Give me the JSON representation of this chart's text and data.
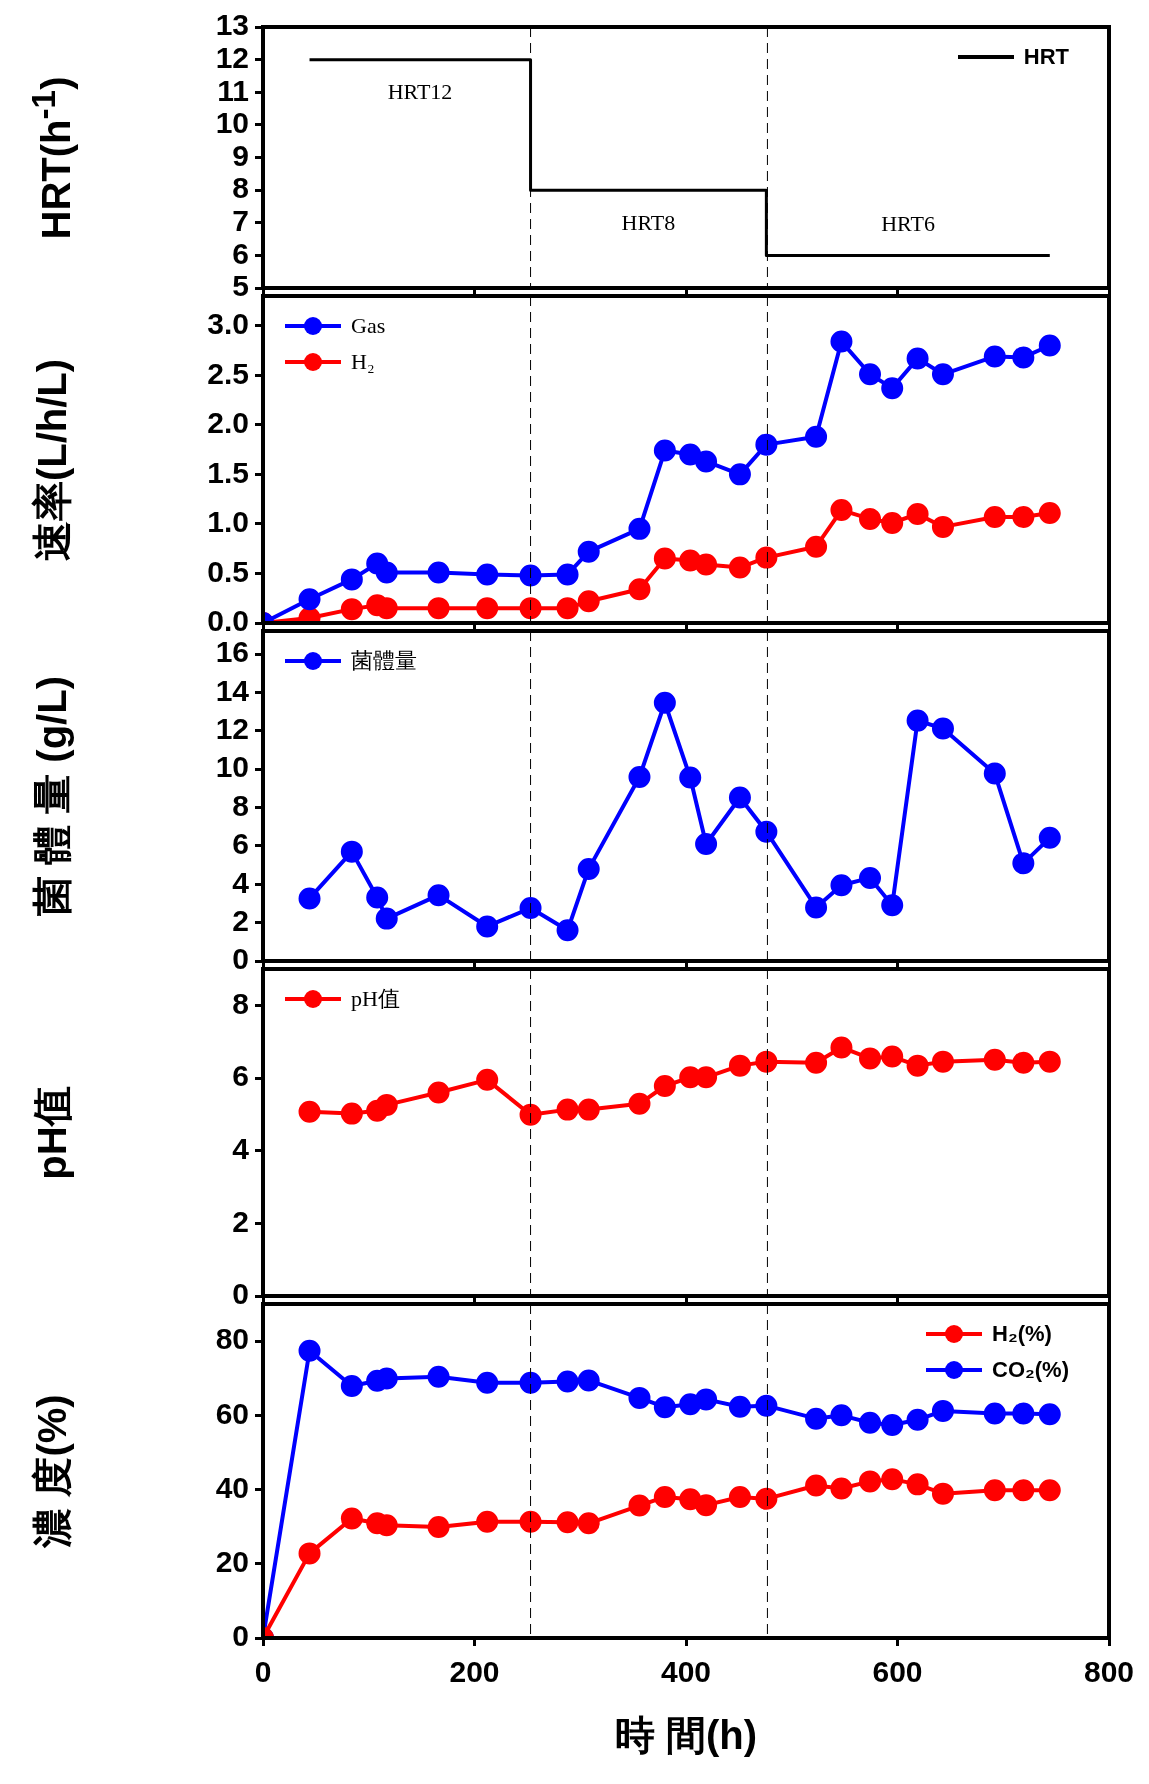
{
  "chart_data": [
    {
      "type": "step",
      "ylabel": "HRT(h$^{-1}$)",
      "x": [
        44,
        253,
        476,
        744
      ],
      "series": [
        {
          "name": "HRT",
          "color": "#000000",
          "values": [
            12,
            8,
            6,
            6
          ]
        }
      ],
      "xlim": [
        0,
        800
      ],
      "xticks": [
        0,
        200,
        400,
        600,
        800
      ],
      "ylim": [
        5,
        13
      ],
      "yticks": [
        5,
        6,
        7,
        8,
        9,
        10,
        11,
        12,
        13
      ],
      "tick_labels": "y",
      "legend": "top right",
      "marker": "none",
      "ref_lines": [
        {
          "axis": "x",
          "value": 253,
          "color": "#000000",
          "line_style": "dashed"
        },
        {
          "axis": "x",
          "value": 477,
          "color": "#000000",
          "line_style": "dashed"
        }
      ],
      "annotations": [
        "HRT12",
        "HRT8",
        "HRT6"
      ]
    },
    {
      "type": "line",
      "ylabel": "速率(L/h/L)",
      "x": [
        0,
        44,
        84,
        108,
        117,
        166,
        212,
        253,
        288,
        308,
        356,
        380,
        404,
        419,
        451,
        476,
        523,
        547,
        574,
        595,
        619,
        643,
        692,
        719,
        744
      ],
      "series": [
        {
          "name": "Gas",
          "color": "#0000ff",
          "values": [
            0,
            0.24,
            0.44,
            0.6,
            0.51,
            0.51,
            0.49,
            0.48,
            0.49,
            0.72,
            0.95,
            1.74,
            1.7,
            1.63,
            1.5,
            1.8,
            1.88,
            2.84,
            2.51,
            2.37,
            2.67,
            2.51,
            2.69,
            2.68,
            2.8
          ]
        },
        {
          "name": "H₂",
          "color": "#ff0000",
          "values": [
            0,
            0.05,
            0.14,
            0.18,
            0.15,
            0.15,
            0.15,
            0.15,
            0.15,
            0.22,
            0.34,
            0.65,
            0.63,
            0.59,
            0.56,
            0.66,
            0.77,
            1.14,
            1.05,
            1.01,
            1.1,
            0.97,
            1.07,
            1.07,
            1.11
          ]
        }
      ],
      "xlim": [
        0,
        800
      ],
      "xticks": [
        0,
        200,
        400,
        600,
        800
      ],
      "ylim": [
        0,
        3.3
      ],
      "yticks": [
        {
          "value": 0,
          "label": "0.0"
        },
        {
          "value": 0.5,
          "label": "0.5"
        },
        {
          "value": 1,
          "label": "1.0"
        },
        {
          "value": 1.5,
          "label": "1.5"
        },
        {
          "value": 2,
          "label": "2.0"
        },
        {
          "value": 2.5,
          "label": "2.5"
        },
        {
          "value": 3,
          "label": "3.0"
        }
      ],
      "tick_labels": "y",
      "legend": "top left",
      "marker": "circle",
      "ref_lines": [
        {
          "axis": "x",
          "value": 253,
          "color": "#000000",
          "line_style": "dashed"
        },
        {
          "axis": "x",
          "value": 477,
          "color": "#000000",
          "line_style": "dashed"
        }
      ]
    },
    {
      "type": "line",
      "ylabel": "菌 體 量 (g/L)",
      "x": [
        44,
        84,
        108,
        117,
        166,
        212,
        253,
        288,
        308,
        356,
        380,
        404,
        419,
        451,
        476,
        523,
        547,
        574,
        595,
        619,
        643,
        692,
        719,
        744
      ],
      "series": [
        {
          "name": "菌體量",
          "color": "#0000ff",
          "values": [
            3.26,
            5.7,
            3.31,
            2.21,
            3.43,
            1.8,
            2.76,
            1.6,
            4.8,
            9.59,
            13.46,
            9.56,
            6.1,
            8.52,
            6.74,
            2.79,
            3.95,
            4.33,
            2.91,
            12.53,
            12.12,
            9.77,
            5.09,
            6.42
          ]
        }
      ],
      "xlim": [
        0,
        800
      ],
      "xticks": [
        0,
        200,
        400,
        600,
        800
      ],
      "ylim": [
        0,
        17.2
      ],
      "yticks": [
        0,
        2,
        4,
        6,
        8,
        10,
        12,
        14,
        16
      ],
      "tick_labels": "y",
      "legend": "top left",
      "marker": "circle",
      "ref_lines": [
        {
          "axis": "x",
          "value": 253,
          "color": "#000000",
          "line_style": "dashed"
        },
        {
          "axis": "x",
          "value": 477,
          "color": "#000000",
          "line_style": "dashed"
        }
      ]
    },
    {
      "type": "line",
      "ylabel": "pH值",
      "x": [
        44,
        84,
        108,
        117,
        166,
        212,
        253,
        288,
        308,
        356,
        380,
        404,
        419,
        451,
        476,
        523,
        547,
        574,
        595,
        619,
        643,
        692,
        719,
        744
      ],
      "series": [
        {
          "name": "pH值",
          "color": "#ff0000",
          "values": [
            5.07,
            5.02,
            5.1,
            5.26,
            5.6,
            5.95,
            4.99,
            5.13,
            5.13,
            5.29,
            5.78,
            6.02,
            6.02,
            6.34,
            6.45,
            6.42,
            6.84,
            6.54,
            6.59,
            6.34,
            6.45,
            6.5,
            6.42,
            6.45
          ]
        }
      ],
      "xlim": [
        0,
        800
      ],
      "xticks": [
        0,
        200,
        400,
        600,
        800
      ],
      "ylim": [
        0,
        9
      ],
      "yticks": [
        0,
        2,
        4,
        6,
        8
      ],
      "tick_labels": "y",
      "legend": "top left",
      "marker": "circle",
      "ref_lines": [
        {
          "axis": "x",
          "value": 253,
          "color": "#000000",
          "line_style": "dashed"
        },
        {
          "axis": "x",
          "value": 477,
          "color": "#000000",
          "line_style": "dashed"
        }
      ]
    },
    {
      "type": "line",
      "ylabel": "濃 度(%)",
      "xlabel": "時 間(h)",
      "x": [
        0,
        44,
        84,
        108,
        117,
        166,
        212,
        253,
        288,
        308,
        356,
        380,
        404,
        419,
        451,
        476,
        523,
        547,
        574,
        595,
        619,
        643,
        692,
        719,
        744
      ],
      "series": [
        {
          "name": "H₂(%)",
          "color": "#ff0000",
          "values": [
            0,
            22.8,
            32.2,
            30.9,
            30.4,
            29.9,
            31.3,
            31.3,
            31.2,
            30.9,
            35.7,
            38.0,
            37.4,
            35.8,
            38.0,
            37.5,
            41.1,
            40.3,
            42.2,
            42.8,
            41.4,
            38.9,
            39.8,
            39.8,
            39.8
          ]
        },
        {
          "name": "CO₂(%)",
          "color": "#0000ff",
          "values": [
            0,
            77.4,
            67.9,
            69.3,
            69.9,
            70.4,
            68.8,
            68.8,
            69.1,
            69.4,
            64.7,
            62.2,
            63.0,
            64.3,
            62.3,
            62.6,
            59.1,
            60.0,
            58.0,
            57.4,
            58.8,
            61.2,
            60.5,
            60.5,
            60.3
          ]
        }
      ],
      "xlim": [
        0,
        800
      ],
      "xticks": [
        0,
        200,
        400,
        600,
        800
      ],
      "ylim": [
        0,
        90
      ],
      "yticks": [
        0,
        20,
        40,
        60,
        80
      ],
      "legend": "top right",
      "marker": "circle",
      "ref_lines": [
        {
          "axis": "x",
          "value": 253,
          "color": "#000000",
          "line_style": "dashed"
        },
        {
          "axis": "x",
          "value": 477,
          "color": "#000000",
          "line_style": "dashed"
        }
      ]
    }
  ]
}
